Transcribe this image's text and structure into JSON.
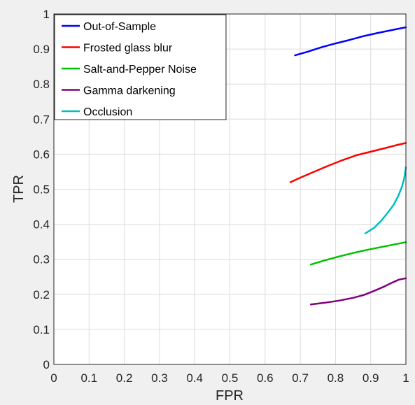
{
  "chart_data": {
    "type": "line",
    "xlabel": "FPR",
    "ylabel": "TPR",
    "xlim": [
      0,
      1
    ],
    "ylim": [
      0,
      1
    ],
    "xticks": [
      "0",
      "0.1",
      "0.2",
      "0.3",
      "0.4",
      "0.5",
      "0.6",
      "0.7",
      "0.8",
      "0.9",
      "1"
    ],
    "yticks": [
      "0",
      "0.1",
      "0.2",
      "0.3",
      "0.4",
      "0.5",
      "0.6",
      "0.7",
      "0.8",
      "0.9",
      "1"
    ],
    "grid": true,
    "legend_position": "top-left",
    "series": [
      {
        "name": "Out-of-Sample",
        "color": "#0000ff",
        "points": [
          [
            0.685,
            0.882
          ],
          [
            0.72,
            0.892
          ],
          [
            0.76,
            0.905
          ],
          [
            0.8,
            0.916
          ],
          [
            0.84,
            0.926
          ],
          [
            0.88,
            0.937
          ],
          [
            0.92,
            0.946
          ],
          [
            0.96,
            0.954
          ],
          [
            1.0,
            0.962
          ]
        ]
      },
      {
        "name": "Frosted glass blur",
        "color": "#ff0000",
        "points": [
          [
            0.672,
            0.52
          ],
          [
            0.7,
            0.533
          ],
          [
            0.74,
            0.55
          ],
          [
            0.78,
            0.567
          ],
          [
            0.82,
            0.583
          ],
          [
            0.86,
            0.597
          ],
          [
            0.9,
            0.607
          ],
          [
            0.94,
            0.617
          ],
          [
            0.97,
            0.625
          ],
          [
            1.0,
            0.632
          ]
        ]
      },
      {
        "name": "Salt-and-Pepper Noise",
        "color": "#00c000",
        "points": [
          [
            0.73,
            0.285
          ],
          [
            0.77,
            0.297
          ],
          [
            0.81,
            0.308
          ],
          [
            0.85,
            0.318
          ],
          [
            0.89,
            0.327
          ],
          [
            0.93,
            0.335
          ],
          [
            0.97,
            0.343
          ],
          [
            1.0,
            0.349
          ]
        ]
      },
      {
        "name": "Gamma darkening",
        "color": "#800080",
        "points": [
          [
            0.73,
            0.171
          ],
          [
            0.77,
            0.176
          ],
          [
            0.81,
            0.182
          ],
          [
            0.85,
            0.19
          ],
          [
            0.88,
            0.198
          ],
          [
            0.91,
            0.21
          ],
          [
            0.94,
            0.223
          ],
          [
            0.96,
            0.233
          ],
          [
            0.98,
            0.242
          ],
          [
            1.0,
            0.246
          ]
        ]
      },
      {
        "name": "Occlusion",
        "color": "#00bfbf",
        "points": [
          [
            0.885,
            0.374
          ],
          [
            0.91,
            0.39
          ],
          [
            0.93,
            0.41
          ],
          [
            0.95,
            0.435
          ],
          [
            0.965,
            0.455
          ],
          [
            0.978,
            0.48
          ],
          [
            0.988,
            0.505
          ],
          [
            0.995,
            0.53
          ],
          [
            1.0,
            0.562
          ]
        ]
      }
    ]
  }
}
